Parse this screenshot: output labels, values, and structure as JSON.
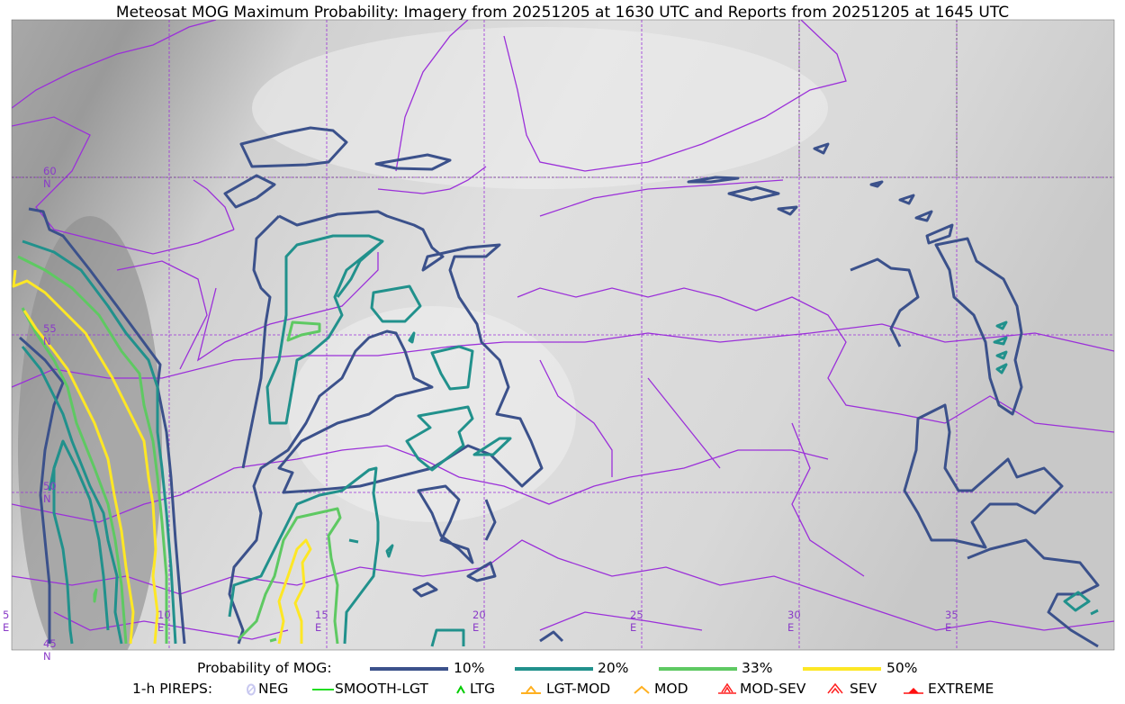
{
  "title": "Meteosat MOG Maximum Probability: Imagery from 20251205 at 1630 UTC and Reports from 20251205 at 1645 UTC",
  "map": {
    "lat_labels": [
      "60 N",
      "55 N",
      "50 N",
      "45 N"
    ],
    "lon_labels": [
      "5 E",
      "10 E",
      "15 E",
      "20 E",
      "25 E",
      "30 E",
      "35 E"
    ],
    "background": "grayscale satellite imagery",
    "border_color": "#9b30d9"
  },
  "legend": {
    "probability": {
      "title": "Probability of MOG:",
      "levels": [
        {
          "label": "10%",
          "color": "#3b518b"
        },
        {
          "label": "20%",
          "color": "#21918c"
        },
        {
          "label": "33%",
          "color": "#5ec962"
        },
        {
          "label": "50%",
          "color": "#fde725"
        }
      ]
    },
    "pireps": {
      "title": "1-h PIREPS:",
      "items": [
        {
          "label": "NEG",
          "color": "#c8c8f0",
          "icon": "neg-icon"
        },
        {
          "label": "SMOOTH-LGT",
          "color": "#22dd22",
          "icon": "line-icon"
        },
        {
          "label": "LTG",
          "color": "#00cc00",
          "icon": "caret-icon"
        },
        {
          "label": "LGT-MOD",
          "color": "#ffb020",
          "icon": "caret-bar-icon"
        },
        {
          "label": "MOD",
          "color": "#ffb020",
          "icon": "caret-icon"
        },
        {
          "label": "MOD-SEV",
          "color": "#ff2020",
          "icon": "double-caret-bar-icon"
        },
        {
          "label": "SEV",
          "color": "#ff2020",
          "icon": "double-caret-icon"
        },
        {
          "label": "EXTREME",
          "color": "#ff1010",
          "icon": "triangle-icon"
        }
      ]
    }
  }
}
